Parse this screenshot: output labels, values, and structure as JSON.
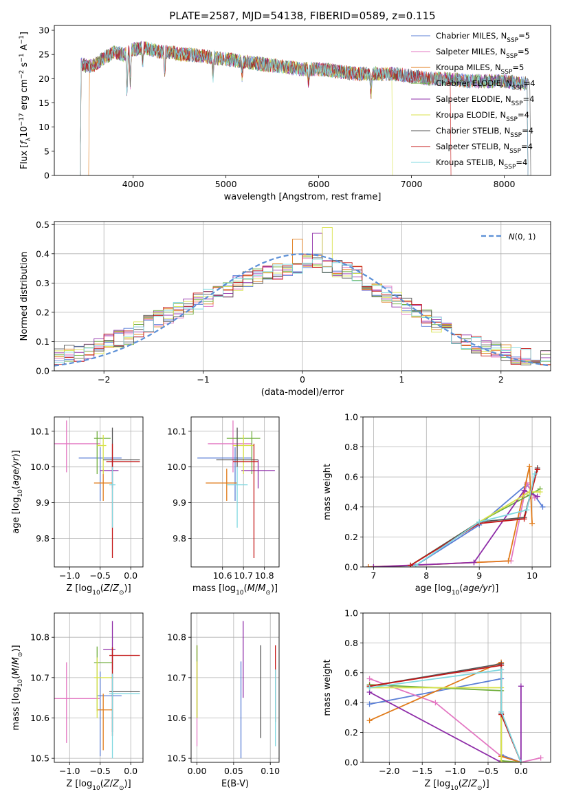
{
  "figure_title": "PLATE=2587, MJD=54138, FIBERID=0589, z=0.115",
  "colors": {
    "Chabrier MILES": "#5b7fd6",
    "Salpeter MILES": "#e377c2",
    "Kroupa MILES": "#e07b1a",
    "Chabrier ELODIE": "#6fae3c",
    "Salpeter ELODIE": "#8e2ca8",
    "Kroupa ELODIE": "#d8e24a",
    "Chabrier STELIB": "#555555",
    "Salpeter STELIB": "#c41818",
    "Kroupa STELIB": "#7fd8e0",
    "normal_curve": "#5b8fd6"
  },
  "chart_data": [
    {
      "id": "spectrum",
      "type": "line",
      "title": "PLATE=2587, MJD=54138, FIBERID=0589, z=0.115",
      "xlabel": "wavelength [Angstrom, rest frame]",
      "ylabel": "Flux [f_λ 10^-17 erg cm^-2 s^-1 A^-1]",
      "xlim": [
        3150,
        8500
      ],
      "ylim": [
        0,
        31
      ],
      "xticks": [
        4000,
        5000,
        6000,
        7000,
        8000
      ],
      "yticks": [
        0,
        5,
        10,
        15,
        20,
        25,
        30
      ],
      "grid": false,
      "legend_position": "upper right",
      "legend": [
        "Chabrier MILES, N_SSP=5",
        "Salpeter MILES, N_SSP=5",
        "Kroupa MILES, N_SSP=5",
        "Chabrier ELODIE, N_SSP=4",
        "Salpeter ELODIE, N_SSP=4",
        "Kroupa ELODIE, N_SSP=4",
        "Chabrier STELIB, N_SSP=4",
        "Salpeter STELIB, N_SSP=4",
        "Kroupa STELIB, N_SSP=4"
      ],
      "continuum": {
        "wavelength": [
          3400,
          3500,
          3600,
          3700,
          3800,
          3900,
          4000,
          4100,
          4200,
          4300,
          4400,
          4500,
          4600,
          4800,
          5000,
          5200,
          5400,
          5600,
          5800,
          6000,
          6200,
          6400,
          6600,
          6800,
          7000,
          7200,
          7400,
          7600,
          7800,
          8000,
          8200
        ],
        "flux": [
          23.5,
          22.5,
          23.0,
          24.5,
          25.5,
          25.0,
          26.0,
          26.5,
          26.0,
          25.5,
          25.5,
          25.0,
          25.0,
          24.5,
          24.0,
          23.5,
          23.0,
          22.5,
          22.0,
          22.0,
          21.5,
          21.0,
          21.0,
          21.0,
          20.5,
          20.0,
          20.0,
          19.5,
          19.5,
          19.5,
          19.0
        ]
      },
      "series_wavelength_range": [
        [
          3440,
          8250
        ],
        [
          3440,
          8250
        ],
        [
          3530,
          8250
        ],
        [
          3440,
          8250
        ],
        [
          3440,
          8250
        ],
        [
          3440,
          6790
        ],
        [
          3440,
          8280
        ],
        [
          3440,
          7420
        ],
        [
          3440,
          8250
        ]
      ]
    },
    {
      "id": "residual_histogram",
      "type": "line",
      "xlabel": "(data-model)/error",
      "ylabel": "Normed distribution",
      "xlim": [
        -2.5,
        2.5
      ],
      "ylim": [
        0,
        0.51
      ],
      "xticks": [
        -2,
        -1,
        0,
        1,
        2
      ],
      "yticks": [
        0.0,
        0.1,
        0.2,
        0.3,
        0.4,
        0.5
      ],
      "grid": true,
      "legend_position": "upper right",
      "legend": [
        "N(0,1)"
      ],
      "bin_edges": [
        -2.5,
        -2.4,
        -2.3,
        -2.2,
        -2.1,
        -2.0,
        -1.9,
        -1.8,
        -1.7,
        -1.6,
        -1.5,
        -1.4,
        -1.3,
        -1.2,
        -1.1,
        -1.0,
        -0.9,
        -0.8,
        -0.7,
        -0.6,
        -0.5,
        -0.4,
        -0.3,
        -0.2,
        -0.1,
        0.0,
        0.1,
        0.2,
        0.3,
        0.4,
        0.5,
        0.6,
        0.7,
        0.8,
        0.9,
        1.0,
        1.1,
        1.2,
        1.3,
        1.4,
        1.5,
        1.6,
        1.7,
        1.8,
        1.9,
        2.0,
        2.1,
        2.2,
        2.3,
        2.4,
        2.5
      ],
      "base_counts": [
        0.05,
        0.06,
        0.06,
        0.07,
        0.08,
        0.1,
        0.11,
        0.12,
        0.14,
        0.16,
        0.18,
        0.19,
        0.21,
        0.22,
        0.24,
        0.25,
        0.27,
        0.28,
        0.3,
        0.31,
        0.32,
        0.33,
        0.34,
        0.35,
        0.36,
        0.37,
        0.37,
        0.36,
        0.35,
        0.34,
        0.33,
        0.3,
        0.28,
        0.26,
        0.24,
        0.22,
        0.2,
        0.18,
        0.16,
        0.14,
        0.12,
        0.1,
        0.09,
        0.08,
        0.07,
        0.06,
        0.05,
        0.05,
        0.04,
        0.05
      ],
      "normal_curve": {
        "mean": 0,
        "sigma": 1
      }
    },
    {
      "id": "age_vs_Z",
      "type": "scatter",
      "xlabel": "Z [log10(Z/Z⊙)]",
      "ylabel": "age [log10(age/yr)]",
      "xlim": [
        -1.25,
        0.2
      ],
      "ylim": [
        9.72,
        10.14
      ],
      "xticks": [
        -1.0,
        -0.5,
        0.0
      ],
      "yticks": [
        9.8,
        9.9,
        10.0,
        10.1
      ],
      "grid": true,
      "points": [
        {
          "x": -0.5,
          "y": 10.025,
          "xerr": [
            0.35,
            0.35
          ],
          "yerr": [
            0.12,
            0.03
          ]
        },
        {
          "x": -1.05,
          "y": 10.065,
          "xerr": [
            0.55,
            0.55
          ],
          "yerr": [
            0.08,
            0.065
          ]
        },
        {
          "x": -0.45,
          "y": 9.955,
          "xerr": [
            0.15,
            0.15
          ],
          "yerr": [
            0.05,
            0.04
          ]
        },
        {
          "x": -0.55,
          "y": 10.08,
          "xerr": [
            0.05,
            0.22
          ],
          "yerr": [
            0.1,
            0.02
          ]
        },
        {
          "x": -0.3,
          "y": 9.99,
          "xerr": [
            0.2,
            0.1
          ],
          "yerr": [
            0.05,
            0.03
          ]
        },
        {
          "x": -0.45,
          "y": 10.06,
          "xerr": [
            0.1,
            0.05
          ],
          "yerr": [
            0.08,
            0.03
          ]
        },
        {
          "x": -0.3,
          "y": 10.02,
          "xerr": [
            0.15,
            0.45
          ],
          "yerr": [
            0.02,
            0.09
          ]
        },
        {
          "x": -0.3,
          "y": 10.015,
          "xerr": [
            0.1,
            0.45
          ],
          "yerr": [
            0.27,
            0.05
          ]
        },
        {
          "x": -0.3,
          "y": 9.95,
          "xerr": [
            0.05,
            0.05
          ],
          "yerr": [
            0.12,
            0.05
          ]
        }
      ]
    },
    {
      "id": "age_vs_mass",
      "type": "scatter",
      "xlabel": "mass [log10(M/M⊙)]",
      "ylabel": "",
      "xlim": [
        10.45,
        10.87
      ],
      "ylim": [
        9.72,
        10.14
      ],
      "xticks": [
        10.6,
        10.7,
        10.8
      ],
      "yticks": [
        9.8,
        9.9,
        10.0,
        10.1
      ],
      "grid": true,
      "points": [
        {
          "x": 10.66,
          "y": 10.025,
          "xerr": [
            0.18,
            0.08
          ],
          "yerr": [
            0.12,
            0.03
          ]
        },
        {
          "x": 10.65,
          "y": 10.065,
          "xerr": [
            0.12,
            0.09
          ],
          "yerr": [
            0.08,
            0.065
          ]
        },
        {
          "x": 10.62,
          "y": 9.955,
          "xerr": [
            0.1,
            0.05
          ],
          "yerr": [
            0.05,
            0.04
          ]
        },
        {
          "x": 10.74,
          "y": 10.08,
          "xerr": [
            0.12,
            0.04
          ],
          "yerr": [
            0.1,
            0.02
          ]
        },
        {
          "x": 10.77,
          "y": 9.99,
          "xerr": [
            0.08,
            0.08
          ],
          "yerr": [
            0.05,
            0.03
          ]
        },
        {
          "x": 10.7,
          "y": 10.06,
          "xerr": [
            0.05,
            0.05
          ],
          "yerr": [
            0.08,
            0.03
          ]
        },
        {
          "x": 10.67,
          "y": 10.02,
          "xerr": [
            0.1,
            0.1
          ],
          "yerr": [
            0.02,
            0.09
          ]
        },
        {
          "x": 10.75,
          "y": 10.015,
          "xerr": [
            0.1,
            0.02
          ],
          "yerr": [
            0.27,
            0.05
          ]
        },
        {
          "x": 10.67,
          "y": 9.95,
          "xerr": [
            0.05,
            0.05
          ],
          "yerr": [
            0.12,
            0.05
          ]
        }
      ]
    },
    {
      "id": "mass_weight_vs_age",
      "type": "line",
      "xlabel": "age [log10(age/yr)]",
      "ylabel": "mass weight",
      "xlim": [
        6.8,
        10.35
      ],
      "ylim": [
        0,
        1.0
      ],
      "xticks": [
        7,
        8,
        9,
        10
      ],
      "yticks": [
        0.0,
        0.2,
        0.4,
        0.6,
        0.8,
        1.0
      ],
      "grid": true,
      "series": [
        {
          "values_x": [
            6.9,
            7.8,
            9.0,
            9.9,
            10.2
          ],
          "values_y": [
            0.0,
            0.01,
            0.28,
            0.55,
            0.4
          ]
        },
        {
          "values_x": [
            6.9,
            8.9,
            9.6,
            9.9,
            10.05
          ],
          "values_y": [
            0.0,
            0.03,
            0.04,
            0.56,
            0.46
          ]
        },
        {
          "values_x": [
            6.9,
            7.7,
            9.55,
            9.95,
            10.0
          ],
          "values_y": [
            0.0,
            0.01,
            0.04,
            0.67,
            0.29
          ]
        },
        {
          "values_x": [
            7.7,
            9.0,
            9.95,
            10.15
          ],
          "values_y": [
            0.01,
            0.3,
            0.48,
            0.52
          ]
        },
        {
          "values_x": [
            7.0,
            8.9,
            9.85,
            10.1
          ],
          "values_y": [
            0.0,
            0.03,
            0.51,
            0.47
          ]
        },
        {
          "values_x": [
            7.7,
            9.0,
            9.95,
            10.15
          ],
          "values_y": [
            0.01,
            0.3,
            0.5,
            0.5
          ]
        },
        {
          "values_x": [
            7.7,
            9.0,
            9.85,
            10.1
          ],
          "values_y": [
            0.01,
            0.3,
            0.33,
            0.66
          ]
        },
        {
          "values_x": [
            7.7,
            9.0,
            9.85,
            10.1
          ],
          "values_y": [
            0.01,
            0.29,
            0.32,
            0.65
          ]
        },
        {
          "values_x": [
            7.8,
            9.0,
            9.9,
            10.05
          ],
          "values_y": [
            0.01,
            0.3,
            0.38,
            0.62
          ]
        }
      ]
    },
    {
      "id": "mass_vs_Z",
      "type": "scatter",
      "xlabel": "Z [log10(Z/Z⊙)]",
      "ylabel": "mass [log10(M/M⊙)]",
      "xlim": [
        -1.25,
        0.2
      ],
      "ylim": [
        10.49,
        10.86
      ],
      "xticks": [
        -1.0,
        -0.5,
        0.0
      ],
      "yticks": [
        10.5,
        10.6,
        10.7,
        10.8
      ],
      "grid": true,
      "points": [
        {
          "x": -0.5,
          "y": 10.655,
          "xerr": [
            0.05,
            0.35
          ],
          "yerr": [
            0.15,
            0.06
          ]
        },
        {
          "x": -1.05,
          "y": 10.648,
          "xerr": [
            0.55,
            0.55
          ],
          "yerr": [
            0.11,
            0.09
          ]
        },
        {
          "x": -0.45,
          "y": 10.62,
          "xerr": [
            0.1,
            0.15
          ],
          "yerr": [
            0.1,
            0.04
          ]
        },
        {
          "x": -0.55,
          "y": 10.737,
          "xerr": [
            0.05,
            0.25
          ],
          "yerr": [
            0.12,
            0.04
          ]
        },
        {
          "x": -0.3,
          "y": 10.77,
          "xerr": [
            0.15,
            0.05
          ],
          "yerr": [
            0.05,
            0.07
          ]
        },
        {
          "x": -0.55,
          "y": 10.7,
          "xerr": [
            0.05,
            0.25
          ],
          "yerr": [
            0.1,
            0.05
          ]
        },
        {
          "x": -0.3,
          "y": 10.665,
          "xerr": [
            0.05,
            0.45
          ],
          "yerr": [
            0.1,
            0.11
          ]
        },
        {
          "x": -0.3,
          "y": 10.755,
          "xerr": [
            0.05,
            0.45
          ],
          "yerr": [
            0.2,
            0.02
          ]
        },
        {
          "x": -0.3,
          "y": 10.66,
          "xerr": [
            0.05,
            0.45
          ],
          "yerr": [
            0.16,
            0.05
          ]
        }
      ]
    },
    {
      "id": "mass_vs_ebv",
      "type": "scatter",
      "xlabel": "E(B-V)",
      "ylabel": "",
      "xlim": [
        -0.008,
        0.112
      ],
      "ylim": [
        10.49,
        10.86
      ],
      "xticks": [
        0.0,
        0.05,
        0.1
      ],
      "yticks": [
        10.5,
        10.6,
        10.7,
        10.8
      ],
      "grid": true,
      "points": [
        {
          "x": 0.06,
          "y": 10.62,
          "yerr": [
            0.12,
            0.12
          ]
        },
        {
          "x": 0.0,
          "y": 10.64,
          "yerr": [
            0.11,
            0.1
          ]
        },
        {
          "x": 0.0,
          "y": 10.7,
          "yerr": [
            0.1,
            0.08
          ]
        },
        {
          "x": 0.0,
          "y": 10.7,
          "yerr": [
            0.1,
            0.08
          ]
        },
        {
          "x": 0.063,
          "y": 10.75,
          "yerr": [
            0.1,
            0.09
          ]
        },
        {
          "x": 0.0,
          "y": 10.68,
          "yerr": [
            0.08,
            0.06
          ]
        },
        {
          "x": 0.087,
          "y": 10.66,
          "yerr": [
            0.11,
            0.12
          ]
        },
        {
          "x": 0.107,
          "y": 10.69,
          "yerr": [
            0.1,
            0.09
          ]
        },
        {
          "x": 0.107,
          "y": 10.63,
          "yerr": [
            0.1,
            0.09
          ]
        }
      ]
    },
    {
      "id": "mass_weight_vs_Z",
      "type": "line",
      "xlabel": "Z [log10(Z/Z⊙)]",
      "ylabel": "mass weight",
      "xlim": [
        -2.4,
        0.45
      ],
      "ylim": [
        0,
        1.0
      ],
      "xticks": [
        -2.0,
        -1.5,
        -1.0,
        -0.5,
        0.0
      ],
      "yticks": [
        0.0,
        0.2,
        0.4,
        0.6,
        0.8,
        1.0
      ],
      "grid": true,
      "series": [
        {
          "values_x": [
            -2.3,
            -0.3,
            -0.3,
            0.0
          ],
          "values_y": [
            0.39,
            0.56,
            0.05,
            0.0
          ]
        },
        {
          "values_x": [
            -2.3,
            -1.3,
            -0.3,
            0.0,
            0.3
          ],
          "values_y": [
            0.56,
            0.4,
            0.04,
            0.0,
            0.03
          ]
        },
        {
          "values_x": [
            -2.3,
            -0.3,
            -0.3,
            0.0
          ],
          "values_y": [
            0.28,
            0.67,
            0.04,
            0.0
          ]
        },
        {
          "values_x": [
            -2.3,
            -0.3,
            -0.3,
            0.0
          ],
          "values_y": [
            0.52,
            0.48,
            0.01,
            0.0
          ]
        },
        {
          "values_x": [
            -2.3,
            -0.3,
            0.0,
            0.0
          ],
          "values_y": [
            0.47,
            0.0,
            0.0,
            0.51
          ]
        },
        {
          "values_x": [
            -2.3,
            -0.3,
            -0.3,
            0.0
          ],
          "values_y": [
            0.5,
            0.5,
            0.0,
            0.0
          ]
        },
        {
          "values_x": [
            -2.3,
            -0.3,
            -0.3,
            0.0
          ],
          "values_y": [
            0.51,
            0.66,
            0.33,
            0.0
          ]
        },
        {
          "values_x": [
            -2.3,
            -0.3,
            -0.3,
            0.0
          ],
          "values_y": [
            0.51,
            0.65,
            0.32,
            0.0
          ]
        },
        {
          "values_x": [
            -2.3,
            -0.3,
            -0.3,
            0.0
          ],
          "values_y": [
            0.5,
            0.62,
            0.34,
            0.0
          ]
        }
      ]
    }
  ]
}
